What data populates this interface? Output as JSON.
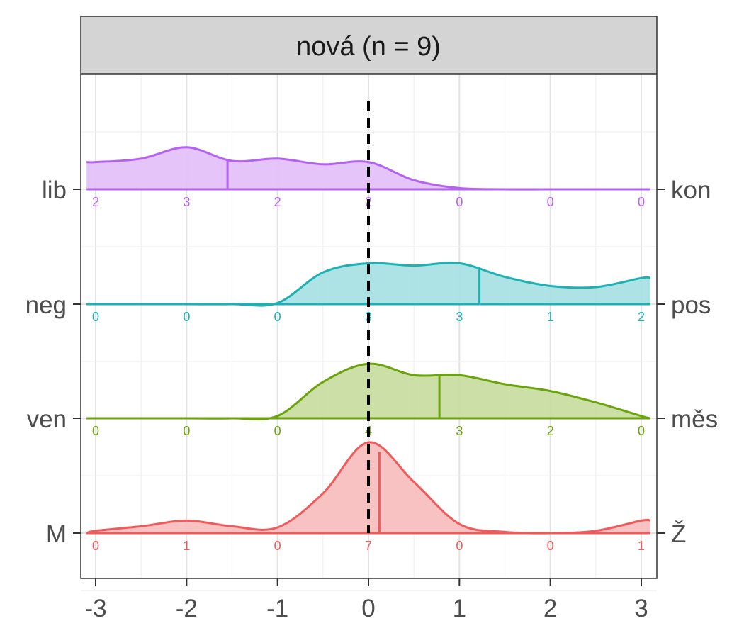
{
  "chart_data": {
    "type": "ridgeline",
    "title": "nová (n = 9)",
    "xlabel": "",
    "ylabel": "",
    "xlim": [
      -3.1,
      3.1
    ],
    "x_ticks": [
      -3,
      -2,
      -1,
      0,
      1,
      2,
      3
    ],
    "x_tick_labels": [
      "-3",
      "-2",
      "-1",
      "0",
      "1",
      "2",
      "3"
    ],
    "reference_line_x": 0,
    "count_positions": [
      -3,
      -2,
      -1,
      0,
      1,
      2,
      3
    ],
    "density_x": [
      -3.1,
      -3.0,
      -2.5,
      -2.0,
      -1.5,
      -1.0,
      -0.5,
      0.0,
      0.5,
      1.0,
      1.5,
      2.0,
      2.5,
      3.0,
      3.1
    ],
    "grid": true,
    "series": [
      {
        "name": "M – Ž",
        "left_label": "M",
        "right_label": "Ž",
        "color": "#F05A5A",
        "fill": "#F8BBBB",
        "mean": 0.12,
        "counts": [
          0,
          1,
          0,
          7,
          0,
          0,
          1
        ],
        "density": [
          0.0,
          0.02,
          0.06,
          0.11,
          0.06,
          0.05,
          0.35,
          0.8,
          0.45,
          0.08,
          0.01,
          0.0,
          0.02,
          0.11,
          0.11
        ]
      },
      {
        "name": "ven – měs",
        "left_label": "ven",
        "right_label": "měs",
        "color": "#6AA30B",
        "fill": "#C5DB9C",
        "mean": 0.78,
        "counts": [
          0,
          0,
          0,
          4,
          3,
          2,
          0
        ],
        "density": [
          0.0,
          0.0,
          0.0,
          0.0,
          0.0,
          0.02,
          0.32,
          0.48,
          0.38,
          0.38,
          0.3,
          0.24,
          0.14,
          0.02,
          0.0
        ]
      },
      {
        "name": "neg – pos",
        "left_label": "neg",
        "right_label": "pos",
        "color": "#1EB1B3",
        "fill": "#A4E0E1",
        "mean": 1.22,
        "counts": [
          0,
          0,
          0,
          3,
          3,
          1,
          2
        ],
        "density": [
          0.0,
          0.0,
          0.0,
          0.0,
          0.0,
          0.01,
          0.28,
          0.36,
          0.34,
          0.36,
          0.24,
          0.16,
          0.15,
          0.23,
          0.23
        ]
      },
      {
        "name": "lib – kon",
        "left_label": "lib",
        "right_label": "kon",
        "color": "#B462F2",
        "fill": "#E2BEF9",
        "mean": -1.55,
        "counts": [
          2,
          3,
          2,
          2,
          0,
          0,
          0
        ],
        "density": [
          0.24,
          0.24,
          0.27,
          0.37,
          0.25,
          0.27,
          0.22,
          0.24,
          0.08,
          0.01,
          0.0,
          0.0,
          0.0,
          0.0,
          0.0
        ]
      }
    ]
  }
}
